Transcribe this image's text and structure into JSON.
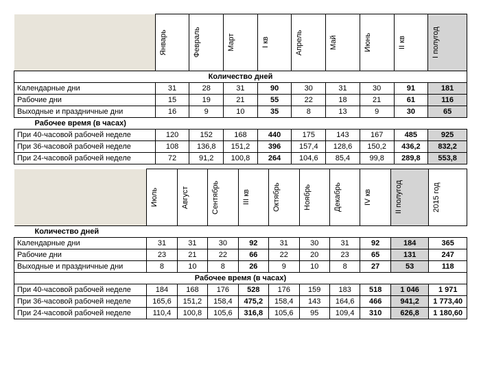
{
  "sections": {
    "days": "Количество дней",
    "hours": "Рабочее время (в часах)"
  },
  "rowLabels": {
    "calendar": "Календарные дни",
    "work": "Рабочие дни",
    "holidays": "Выходные и праздничные дни",
    "h40": "При 40-часовой рабочей неделе",
    "h36": "При 36-часовой рабочей неделе",
    "h24": "При 24-часовой рабочей неделе"
  },
  "table1": {
    "cols": [
      {
        "label": "Январь",
        "type": "m"
      },
      {
        "label": "Февраль",
        "type": "m"
      },
      {
        "label": "Март",
        "type": "m"
      },
      {
        "label": "I кв",
        "type": "kv"
      },
      {
        "label": "Апрель",
        "type": "m"
      },
      {
        "label": "Май",
        "type": "m"
      },
      {
        "label": "Июнь",
        "type": "m"
      },
      {
        "label": "II кв",
        "type": "kv"
      },
      {
        "label": "I полугод",
        "type": "pg"
      }
    ],
    "calendar": [
      "31",
      "28",
      "31",
      "90",
      "30",
      "31",
      "30",
      "91",
      "181"
    ],
    "work": [
      "15",
      "19",
      "21",
      "55",
      "22",
      "18",
      "21",
      "61",
      "116"
    ],
    "holidays": [
      "16",
      "9",
      "10",
      "35",
      "8",
      "13",
      "9",
      "30",
      "65"
    ],
    "h40": [
      "120",
      "152",
      "168",
      "440",
      "175",
      "143",
      "167",
      "485",
      "925"
    ],
    "h36": [
      "108",
      "136,8",
      "151,2",
      "396",
      "157,4",
      "128,6",
      "150,2",
      "436,2",
      "832,2"
    ],
    "h24": [
      "72",
      "91,2",
      "100,8",
      "264",
      "104,6",
      "85,4",
      "99,8",
      "289,8",
      "553,8"
    ]
  },
  "table2": {
    "cols": [
      {
        "label": "Июль",
        "type": "m"
      },
      {
        "label": "Август",
        "type": "m"
      },
      {
        "label": "Сентябрь",
        "type": "m"
      },
      {
        "label": "III кв",
        "type": "kv"
      },
      {
        "label": "Октябрь",
        "type": "m"
      },
      {
        "label": "Ноябрь",
        "type": "m"
      },
      {
        "label": "Декабрь",
        "type": "m"
      },
      {
        "label": "IV кв",
        "type": "kv"
      },
      {
        "label": "II полугод",
        "type": "pg"
      },
      {
        "label": "2015 год",
        "type": "yr"
      }
    ],
    "calendar": [
      "31",
      "31",
      "30",
      "92",
      "31",
      "30",
      "31",
      "92",
      "184",
      "365"
    ],
    "work": [
      "23",
      "21",
      "22",
      "66",
      "22",
      "20",
      "23",
      "65",
      "131",
      "247"
    ],
    "holidays": [
      "8",
      "10",
      "8",
      "26",
      "9",
      "10",
      "8",
      "27",
      "53",
      "118"
    ],
    "h40": [
      "184",
      "168",
      "176",
      "528",
      "176",
      "159",
      "183",
      "518",
      "1 046",
      "1 971"
    ],
    "h36": [
      "165,6",
      "151,2",
      "158,4",
      "475,2",
      "158,4",
      "143",
      "164,6",
      "466",
      "941,2",
      "1 773,40"
    ],
    "h24": [
      "110,4",
      "100,8",
      "105,6",
      "316,8",
      "105,6",
      "95",
      "109,4",
      "310",
      "626,8",
      "1 180,60"
    ]
  }
}
